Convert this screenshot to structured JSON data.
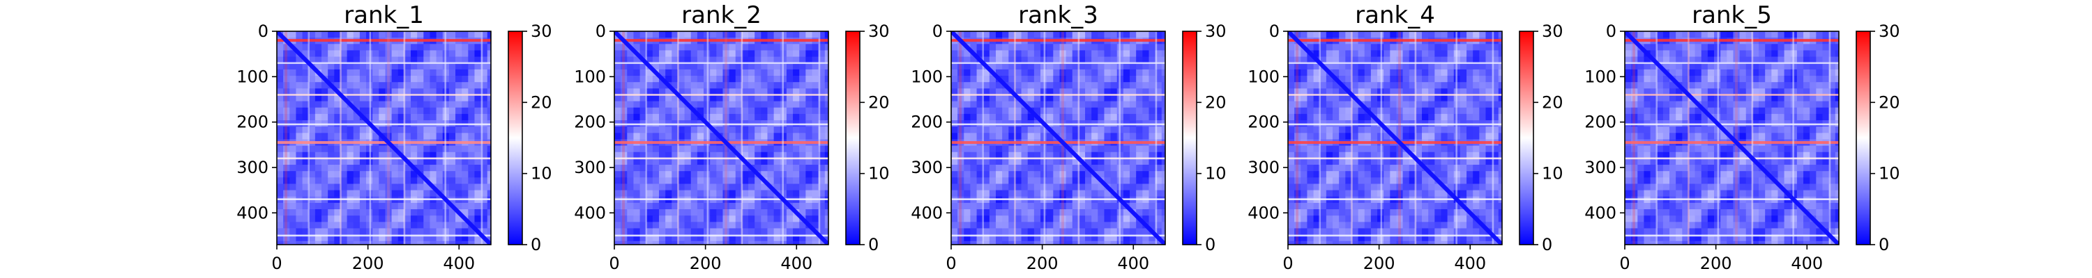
{
  "chart_data": [
    {
      "type": "heatmap",
      "title": "rank_1",
      "size": 470,
      "x_ticks": [
        0,
        200,
        400
      ],
      "y_ticks": [
        0,
        100,
        200,
        300,
        400
      ],
      "xlim": [
        0,
        470
      ],
      "ylim": [
        470,
        0
      ],
      "colorbar": {
        "ticks": [
          0,
          10,
          20,
          30
        ],
        "range": [
          0,
          30
        ],
        "cmap": "bwr"
      },
      "bands": [
        {
          "position": 20,
          "value": 27
        },
        {
          "position": 70,
          "value": 13
        },
        {
          "position": 140,
          "value": 17
        },
        {
          "position": 205,
          "value": 14
        },
        {
          "position": 245,
          "value": 22
        },
        {
          "position": 280,
          "value": 16
        },
        {
          "position": 370,
          "value": 14
        },
        {
          "position": 450,
          "value": 14
        }
      ],
      "diagonal_value": 1
    },
    {
      "type": "heatmap",
      "title": "rank_2",
      "size": 470,
      "x_ticks": [
        0,
        200,
        400
      ],
      "y_ticks": [
        0,
        100,
        200,
        300,
        400
      ],
      "xlim": [
        0,
        470
      ],
      "ylim": [
        470,
        0
      ],
      "colorbar": {
        "ticks": [
          0,
          10,
          20,
          30
        ],
        "range": [
          0,
          30
        ],
        "cmap": "bwr"
      },
      "bands": [
        {
          "position": 20,
          "value": 27
        },
        {
          "position": 70,
          "value": 13
        },
        {
          "position": 140,
          "value": 17
        },
        {
          "position": 205,
          "value": 14
        },
        {
          "position": 245,
          "value": 24
        },
        {
          "position": 280,
          "value": 16
        },
        {
          "position": 370,
          "value": 14
        },
        {
          "position": 450,
          "value": 14
        }
      ],
      "diagonal_value": 1
    },
    {
      "type": "heatmap",
      "title": "rank_3",
      "size": 470,
      "x_ticks": [
        0,
        200,
        400
      ],
      "y_ticks": [
        0,
        100,
        200,
        300,
        400
      ],
      "xlim": [
        0,
        470
      ],
      "ylim": [
        470,
        0
      ],
      "colorbar": {
        "ticks": [
          0,
          10,
          20,
          30
        ],
        "range": [
          0,
          30
        ],
        "cmap": "bwr"
      },
      "bands": [
        {
          "position": 20,
          "value": 27
        },
        {
          "position": 70,
          "value": 13
        },
        {
          "position": 140,
          "value": 17
        },
        {
          "position": 205,
          "value": 14
        },
        {
          "position": 245,
          "value": 25
        },
        {
          "position": 280,
          "value": 16
        },
        {
          "position": 370,
          "value": 14
        },
        {
          "position": 450,
          "value": 14
        }
      ],
      "diagonal_value": 1
    },
    {
      "type": "heatmap",
      "title": "rank_4",
      "size": 470,
      "x_ticks": [
        0,
        200,
        400
      ],
      "y_ticks": [
        0,
        100,
        200,
        300,
        400
      ],
      "xlim": [
        0,
        470
      ],
      "ylim": [
        470,
        0
      ],
      "colorbar": {
        "ticks": [
          0,
          10,
          20,
          30
        ],
        "range": [
          0,
          30
        ],
        "cmap": "bwr"
      },
      "bands": [
        {
          "position": 20,
          "value": 27
        },
        {
          "position": 70,
          "value": 13
        },
        {
          "position": 140,
          "value": 17
        },
        {
          "position": 205,
          "value": 14
        },
        {
          "position": 245,
          "value": 26
        },
        {
          "position": 280,
          "value": 16
        },
        {
          "position": 370,
          "value": 14
        },
        {
          "position": 450,
          "value": 14
        }
      ],
      "diagonal_value": 1
    },
    {
      "type": "heatmap",
      "title": "rank_5",
      "size": 470,
      "x_ticks": [
        0,
        200,
        400
      ],
      "y_ticks": [
        0,
        100,
        200,
        300,
        400
      ],
      "xlim": [
        0,
        470
      ],
      "ylim": [
        470,
        0
      ],
      "colorbar": {
        "ticks": [
          0,
          10,
          20,
          30
        ],
        "range": [
          0,
          30
        ],
        "cmap": "bwr"
      },
      "bands": [
        {
          "position": 20,
          "value": 27
        },
        {
          "position": 70,
          "value": 13
        },
        {
          "position": 140,
          "value": 19
        },
        {
          "position": 205,
          "value": 14
        },
        {
          "position": 245,
          "value": 24
        },
        {
          "position": 280,
          "value": 16
        },
        {
          "position": 370,
          "value": 14
        },
        {
          "position": 450,
          "value": 14
        }
      ],
      "diagonal_value": 1
    }
  ]
}
